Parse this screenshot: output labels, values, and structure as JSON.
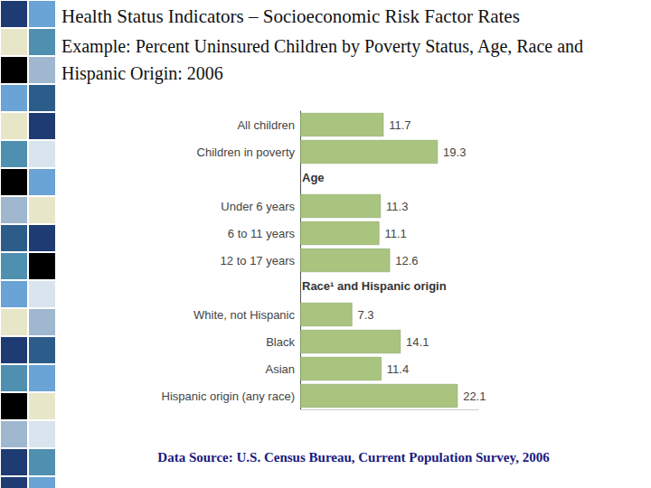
{
  "chart_data": {
    "type": "bar",
    "orientation": "horizontal",
    "title": "Health Status Indicators – Socioeconomic Risk Factor Rates",
    "subtitle": "Example: Percent Uninsured Children by Poverty Status, Age, Race and Hispanic Origin: 2006",
    "annotations": [
      "Data Source: U.S. Census Bureau, Current Population Survey, 2006"
    ],
    "categories": [
      "All children",
      "Children in poverty",
      "Age",
      "Under 6 years",
      "6 to 11 years",
      "12 to 17 years",
      "Race¹ and Hispanic origin",
      "White, not Hispanic",
      "Black",
      "Asian",
      "Hispanic origin (any race)"
    ],
    "values": [
      11.7,
      19.3,
      null,
      11.3,
      11.1,
      12.6,
      null,
      7.3,
      14.1,
      11.4,
      22.1
    ],
    "color": "#a9c47f",
    "xlim": [
      0,
      25
    ],
    "grid": false,
    "data_labels": true,
    "tick_labels": "y"
  }
}
